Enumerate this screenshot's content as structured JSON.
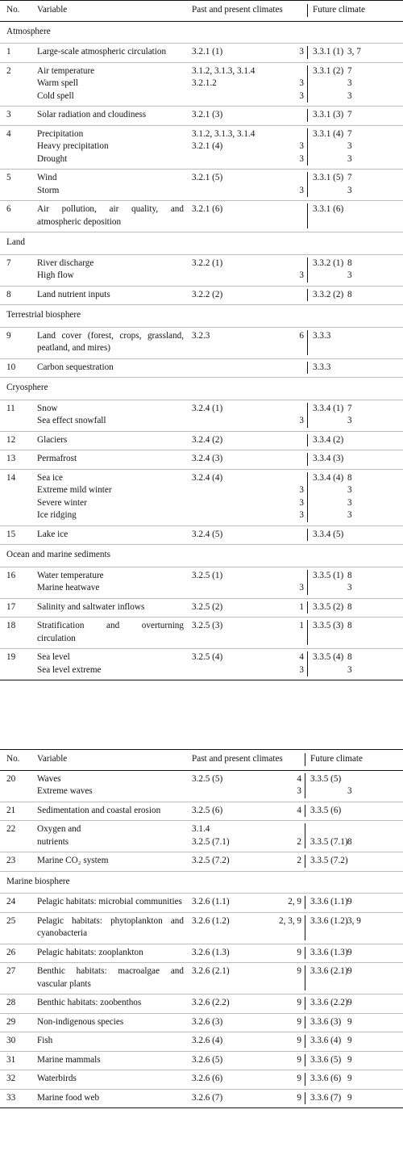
{
  "header": {
    "no": "No.",
    "variable": "Variable",
    "past": "Past and present climates",
    "future": "Future climate"
  },
  "table1": [
    {
      "type": "section",
      "label": "Atmosphere"
    },
    {
      "type": "row",
      "no": "1",
      "variables": [
        "Large-scale atmospheric circulation"
      ],
      "past_refs": [
        "3.2.1 (1)"
      ],
      "past_chapters": [
        "3"
      ],
      "future_refs": [
        "3.3.1 (1)"
      ],
      "future_chapters": [
        "3, 7"
      ]
    },
    {
      "type": "row",
      "no": "2",
      "variables": [
        "Air temperature",
        "Warm spell",
        "Cold spell"
      ],
      "past_refs": [
        "3.1.2, 3.1.3, 3.1.4",
        "3.2.1.2",
        ""
      ],
      "past_chapters": [
        "",
        "3",
        "3"
      ],
      "future_refs": [
        "3.3.1 (2)",
        "",
        ""
      ],
      "future_chapters": [
        "7",
        "3",
        "3"
      ]
    },
    {
      "type": "row",
      "no": "3",
      "variables": [
        "Solar radiation and cloudiness"
      ],
      "past_refs": [
        "3.2.1 (3)"
      ],
      "past_chapters": [
        ""
      ],
      "future_refs": [
        "3.3.1 (3)"
      ],
      "future_chapters": [
        "7"
      ]
    },
    {
      "type": "row",
      "no": "4",
      "variables": [
        "Precipitation",
        "Heavy precipitation",
        "Drought"
      ],
      "past_refs": [
        "3.1.2, 3.1.3, 3.1.4",
        "3.2.1 (4)",
        ""
      ],
      "past_chapters": [
        "",
        "3",
        "3"
      ],
      "future_refs": [
        "3.3.1 (4)",
        "",
        ""
      ],
      "future_chapters": [
        "7",
        "3",
        "3"
      ]
    },
    {
      "type": "row",
      "no": "5",
      "variables": [
        "Wind",
        "Storm"
      ],
      "past_refs": [
        "3.2.1 (5)",
        ""
      ],
      "past_chapters": [
        "",
        "3"
      ],
      "future_refs": [
        "3.3.1 (5)",
        ""
      ],
      "future_chapters": [
        "7",
        "3"
      ]
    },
    {
      "type": "row",
      "no": "6",
      "variables": [
        "Air pollution, air quality, and atmospheric deposition"
      ],
      "past_refs": [
        "3.2.1 (6)"
      ],
      "past_chapters": [
        ""
      ],
      "future_refs": [
        "3.3.1 (6)"
      ],
      "future_chapters": [
        ""
      ]
    },
    {
      "type": "section",
      "label": "Land"
    },
    {
      "type": "row",
      "no": "7",
      "variables": [
        "River discharge",
        "High flow"
      ],
      "past_refs": [
        "3.2.2 (1)",
        ""
      ],
      "past_chapters": [
        "",
        "3"
      ],
      "future_refs": [
        "3.3.2 (1)",
        ""
      ],
      "future_chapters": [
        "8",
        "3"
      ]
    },
    {
      "type": "row",
      "no": "8",
      "variables": [
        "Land nutrient inputs"
      ],
      "past_refs": [
        "3.2.2 (2)"
      ],
      "past_chapters": [
        ""
      ],
      "future_refs": [
        "3.3.2 (2)"
      ],
      "future_chapters": [
        "8"
      ]
    },
    {
      "type": "section",
      "label": "Terrestrial biosphere"
    },
    {
      "type": "row",
      "no": "9",
      "variables": [
        "Land cover (forest, crops, grassland, peatland, and mires)"
      ],
      "past_refs": [
        "3.2.3"
      ],
      "past_chapters": [
        "6"
      ],
      "future_refs": [
        "3.3.3"
      ],
      "future_chapters": [
        ""
      ]
    },
    {
      "type": "row",
      "no": "10",
      "variables": [
        "Carbon sequestration"
      ],
      "past_refs": [
        ""
      ],
      "past_chapters": [
        ""
      ],
      "future_refs": [
        "3.3.3"
      ],
      "future_chapters": [
        ""
      ]
    },
    {
      "type": "section",
      "label": "Cryosphere"
    },
    {
      "type": "row",
      "no": "11",
      "variables": [
        "Snow",
        "Sea effect snowfall"
      ],
      "past_refs": [
        "3.2.4 (1)",
        ""
      ],
      "past_chapters": [
        "",
        "3"
      ],
      "future_refs": [
        "3.3.4 (1)",
        ""
      ],
      "future_chapters": [
        "7",
        "3"
      ]
    },
    {
      "type": "row",
      "no": "12",
      "variables": [
        "Glaciers"
      ],
      "past_refs": [
        "3.2.4 (2)"
      ],
      "past_chapters": [
        ""
      ],
      "future_refs": [
        "3.3.4 (2)"
      ],
      "future_chapters": [
        ""
      ]
    },
    {
      "type": "row",
      "no": "13",
      "variables": [
        "Permafrost"
      ],
      "past_refs": [
        "3.2.4 (3)"
      ],
      "past_chapters": [
        ""
      ],
      "future_refs": [
        "3.3.4 (3)"
      ],
      "future_chapters": [
        ""
      ]
    },
    {
      "type": "row",
      "no": "14",
      "variables": [
        "Sea ice",
        "Extreme mild winter",
        "Severe winter",
        "Ice ridging"
      ],
      "past_refs": [
        "3.2.4 (4)",
        "",
        "",
        ""
      ],
      "past_chapters": [
        "",
        "3",
        "3",
        "3"
      ],
      "future_refs": [
        "3.3.4 (4)",
        "",
        "",
        ""
      ],
      "future_chapters": [
        "8",
        "3",
        "3",
        "3"
      ]
    },
    {
      "type": "row",
      "no": "15",
      "variables": [
        "Lake ice"
      ],
      "past_refs": [
        "3.2.4 (5)"
      ],
      "past_chapters": [
        ""
      ],
      "future_refs": [
        "3.3.4 (5)"
      ],
      "future_chapters": [
        ""
      ]
    },
    {
      "type": "section",
      "label": "Ocean and marine sediments"
    },
    {
      "type": "row",
      "no": "16",
      "variables": [
        "Water temperature",
        "Marine heatwave"
      ],
      "past_refs": [
        "3.2.5 (1)",
        ""
      ],
      "past_chapters": [
        "",
        "3"
      ],
      "future_refs": [
        "3.3.5 (1)",
        ""
      ],
      "future_chapters": [
        "8",
        "3"
      ]
    },
    {
      "type": "row",
      "no": "17",
      "variables": [
        "Salinity and saltwater inflows"
      ],
      "past_refs": [
        "3.2.5 (2)"
      ],
      "past_chapters": [
        "1"
      ],
      "future_refs": [
        "3.3.5 (2)"
      ],
      "future_chapters": [
        "8"
      ]
    },
    {
      "type": "row",
      "no": "18",
      "variables": [
        "Stratification and overturning circulation"
      ],
      "past_refs": [
        "3.2.5 (3)"
      ],
      "past_chapters": [
        "1"
      ],
      "future_refs": [
        "3.3.5 (3)"
      ],
      "future_chapters": [
        "8"
      ]
    },
    {
      "type": "row",
      "no": "19",
      "variables": [
        "Sea level",
        "Sea level extreme"
      ],
      "past_refs": [
        "3.2.5 (4)",
        ""
      ],
      "past_chapters": [
        "4",
        "3"
      ],
      "future_refs": [
        "3.3.5 (4)",
        ""
      ],
      "future_chapters": [
        "8",
        "3"
      ]
    }
  ],
  "table2": [
    {
      "type": "row",
      "no": "20",
      "variables": [
        "Waves",
        "Extreme waves"
      ],
      "past_refs": [
        "3.2.5 (5)",
        ""
      ],
      "past_chapters": [
        "4",
        "3"
      ],
      "future_refs": [
        "3.3.5 (5)",
        ""
      ],
      "future_chapters": [
        "",
        "3"
      ]
    },
    {
      "type": "row",
      "no": "21",
      "variables": [
        "Sedimentation and coastal erosion"
      ],
      "past_refs": [
        "3.2.5 (6)"
      ],
      "past_chapters": [
        "4"
      ],
      "future_refs": [
        "3.3.5 (6)"
      ],
      "future_chapters": [
        ""
      ]
    },
    {
      "type": "row",
      "no": "22",
      "variables": [
        "Oxygen and",
        "nutrients"
      ],
      "past_refs": [
        "3.1.4",
        "3.2.5 (7.1)"
      ],
      "past_chapters": [
        "",
        "2"
      ],
      "future_refs": [
        "",
        "3.3.5 (7.1)"
      ],
      "future_chapters": [
        "",
        "8"
      ]
    },
    {
      "type": "row",
      "no": "23",
      "variables": [
        "Marine CO₂ system"
      ],
      "past_refs": [
        "3.2.5 (7.2)"
      ],
      "past_chapters": [
        "2"
      ],
      "future_refs": [
        "3.3.5 (7.2)"
      ],
      "future_chapters": [
        ""
      ]
    },
    {
      "type": "section",
      "label": "Marine biosphere"
    },
    {
      "type": "row",
      "no": "24",
      "variables": [
        "Pelagic habitats: microbial communities"
      ],
      "past_refs": [
        "3.2.6 (1.1)"
      ],
      "past_chapters": [
        "2, 9"
      ],
      "future_refs": [
        "3.3.6 (1.1)"
      ],
      "future_chapters": [
        "9"
      ]
    },
    {
      "type": "row",
      "no": "25",
      "variables": [
        "Pelagic habitats: phytoplankton and cyanobacteria"
      ],
      "past_refs": [
        "3.2.6 (1.2)"
      ],
      "past_chapters": [
        "2, 3, 9"
      ],
      "future_refs": [
        "3.3.6 (1.2)"
      ],
      "future_chapters": [
        "3, 9"
      ]
    },
    {
      "type": "row",
      "no": "26",
      "variables": [
        "Pelagic habitats: zooplankton"
      ],
      "past_refs": [
        "3.2.6 (1.3)"
      ],
      "past_chapters": [
        "9"
      ],
      "future_refs": [
        "3.3.6 (1.3)"
      ],
      "future_chapters": [
        "9"
      ]
    },
    {
      "type": "row",
      "no": "27",
      "variables": [
        "Benthic habitats: macroalgae and vascular plants"
      ],
      "past_refs": [
        "3.2.6 (2.1)"
      ],
      "past_chapters": [
        "9"
      ],
      "future_refs": [
        "3.3.6 (2.1)"
      ],
      "future_chapters": [
        "9"
      ]
    },
    {
      "type": "row",
      "no": "28",
      "variables": [
        "Benthic habitats: zoobenthos"
      ],
      "past_refs": [
        "3.2.6 (2.2)"
      ],
      "past_chapters": [
        "9"
      ],
      "future_refs": [
        "3.3.6 (2.2)"
      ],
      "future_chapters": [
        "9"
      ]
    },
    {
      "type": "row",
      "no": "29",
      "variables": [
        "Non-indigenous species"
      ],
      "past_refs": [
        "3.2.6 (3)"
      ],
      "past_chapters": [
        "9"
      ],
      "future_refs": [
        "3.3.6 (3)"
      ],
      "future_chapters": [
        "9"
      ]
    },
    {
      "type": "row",
      "no": "30",
      "variables": [
        "Fish"
      ],
      "past_refs": [
        "3.2.6 (4)"
      ],
      "past_chapters": [
        "9"
      ],
      "future_refs": [
        "3.3.6 (4)"
      ],
      "future_chapters": [
        "9"
      ]
    },
    {
      "type": "row",
      "no": "31",
      "variables": [
        "Marine mammals"
      ],
      "past_refs": [
        "3.2.6 (5)"
      ],
      "past_chapters": [
        "9"
      ],
      "future_refs": [
        "3.3.6 (5)"
      ],
      "future_chapters": [
        "9"
      ]
    },
    {
      "type": "row",
      "no": "32",
      "variables": [
        "Waterbirds"
      ],
      "past_refs": [
        "3.2.6 (6)"
      ],
      "past_chapters": [
        "9"
      ],
      "future_refs": [
        "3.3.6 (6)"
      ],
      "future_chapters": [
        "9"
      ]
    },
    {
      "type": "row",
      "no": "33",
      "variables": [
        "Marine food web"
      ],
      "past_refs": [
        "3.2.6 (7)"
      ],
      "past_chapters": [
        "9"
      ],
      "future_refs": [
        "3.3.6 (7)"
      ],
      "future_chapters": [
        "9"
      ]
    }
  ]
}
